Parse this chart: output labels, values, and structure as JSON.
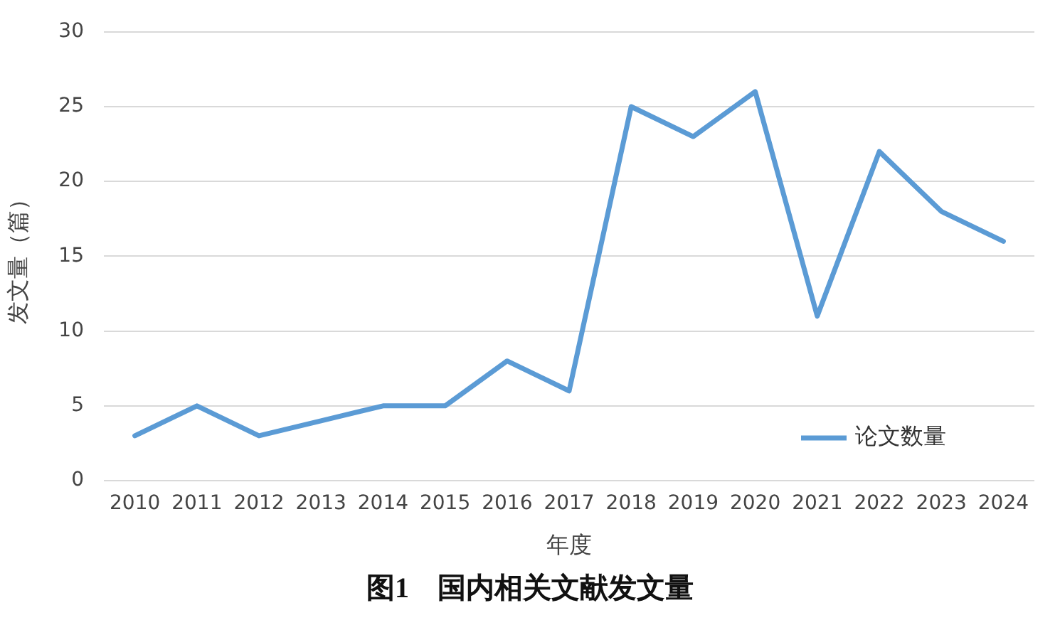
{
  "chart_data": {
    "type": "line",
    "title": "图1　国内相关文献发文量",
    "xlabel": "年度",
    "ylabel": "发文量（篇）",
    "categories": [
      "2010",
      "2011",
      "2012",
      "2013",
      "2014",
      "2015",
      "2016",
      "2017",
      "2018",
      "2019",
      "2020",
      "2021",
      "2022",
      "2023",
      "2024"
    ],
    "series": [
      {
        "name": "论文数量",
        "color": "#5b9bd5",
        "values": [
          3,
          5,
          3,
          4,
          5,
          5,
          8,
          6,
          25,
          23,
          26,
          11,
          22,
          18,
          16
        ]
      }
    ],
    "ylim": [
      0,
      30
    ],
    "yticks": [
      0,
      5,
      10,
      15,
      20,
      25,
      30
    ],
    "grid": "y",
    "legend": "bottom right",
    "marker": "none",
    "line_style": "solid"
  }
}
